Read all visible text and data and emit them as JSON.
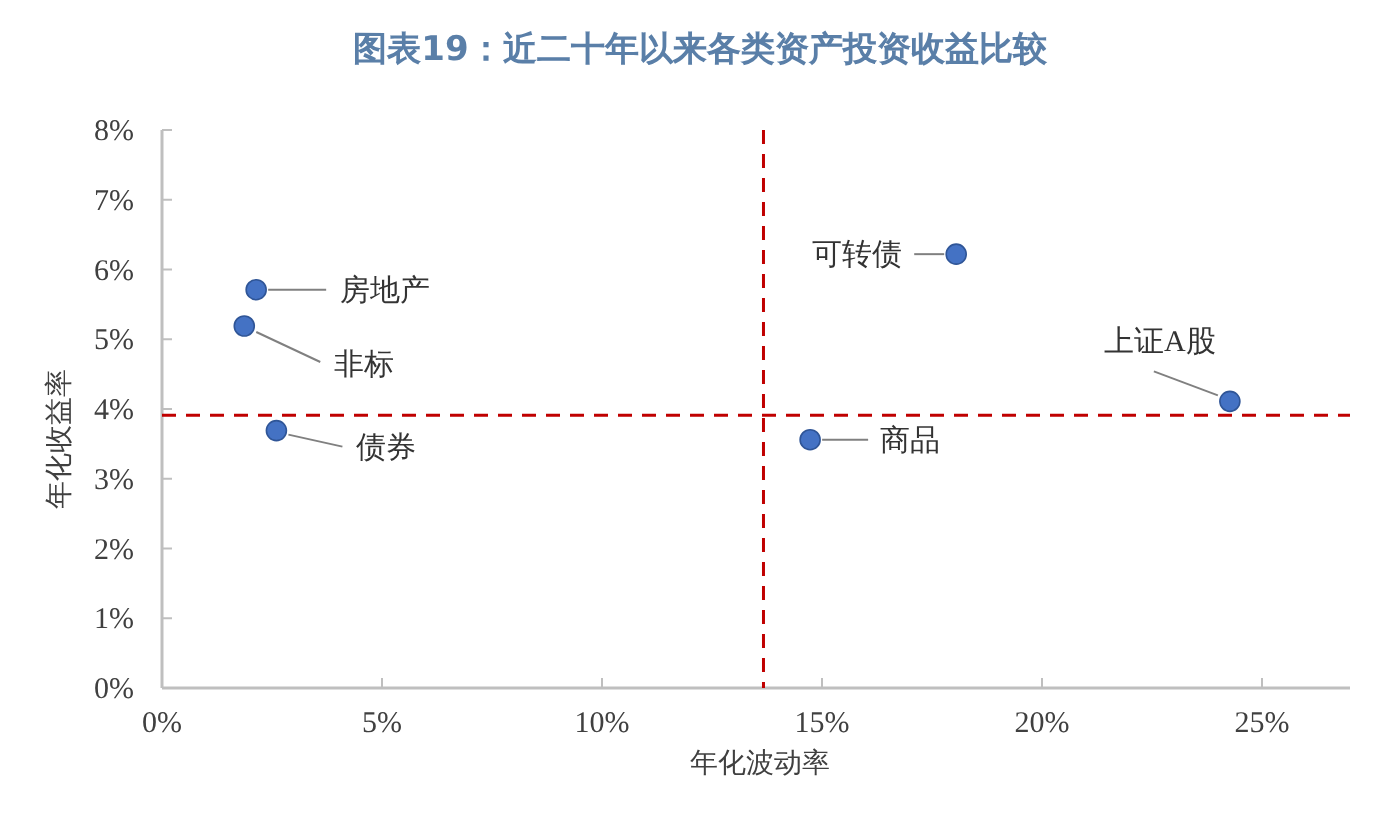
{
  "chart_data": {
    "type": "scatter",
    "title": "图表19：近二十年以来各类资产投资收益比较",
    "xlabel": "年化波动率",
    "ylabel": "年化收益率",
    "x": [
      2.14,
      1.87,
      2.6,
      18.05,
      24.27,
      14.73
    ],
    "series": [
      {
        "color": "#4472c4",
        "values": [
          5.71,
          5.19,
          3.69,
          6.22,
          4.11,
          3.56
        ]
      }
    ],
    "marker": "circle",
    "annotations": [
      {
        "text": "房地产",
        "x": 2.14,
        "y": 5.71
      },
      {
        "text": "非标",
        "x": 1.87,
        "y": 5.19
      },
      {
        "text": "债券",
        "x": 2.6,
        "y": 3.69
      },
      {
        "text": "可转债",
        "x": 18.05,
        "y": 6.22
      },
      {
        "text": "上证A股",
        "x": 24.27,
        "y": 4.11
      },
      {
        "text": "商品",
        "x": 14.73,
        "y": 3.56
      }
    ],
    "ref_lines": [
      {
        "axis": "x",
        "value": 13.67,
        "color": "#c00000",
        "line_style": "dashed"
      },
      {
        "axis": "y",
        "value": 3.91,
        "color": "#c00000",
        "line_style": "dashed"
      }
    ],
    "xlim": [
      0,
      27
    ],
    "ylim": [
      0,
      8
    ],
    "xticks": [
      {
        "value": 0,
        "label": "0%"
      },
      {
        "value": 5,
        "label": "5%"
      },
      {
        "value": 10,
        "label": "10%"
      },
      {
        "value": 15,
        "label": "15%"
      },
      {
        "value": 20,
        "label": "20%"
      },
      {
        "value": 25,
        "label": "25%"
      }
    ],
    "yticks": [
      {
        "value": 0,
        "label": "0%"
      },
      {
        "value": 1,
        "label": "1%"
      },
      {
        "value": 2,
        "label": "2%"
      },
      {
        "value": 3,
        "label": "3%"
      },
      {
        "value": 4,
        "label": "4%"
      },
      {
        "value": 5,
        "label": "5%"
      },
      {
        "value": 6,
        "label": "6%"
      },
      {
        "value": 7,
        "label": "7%"
      },
      {
        "value": 8,
        "label": "8%"
      }
    ],
    "grid": false
  }
}
